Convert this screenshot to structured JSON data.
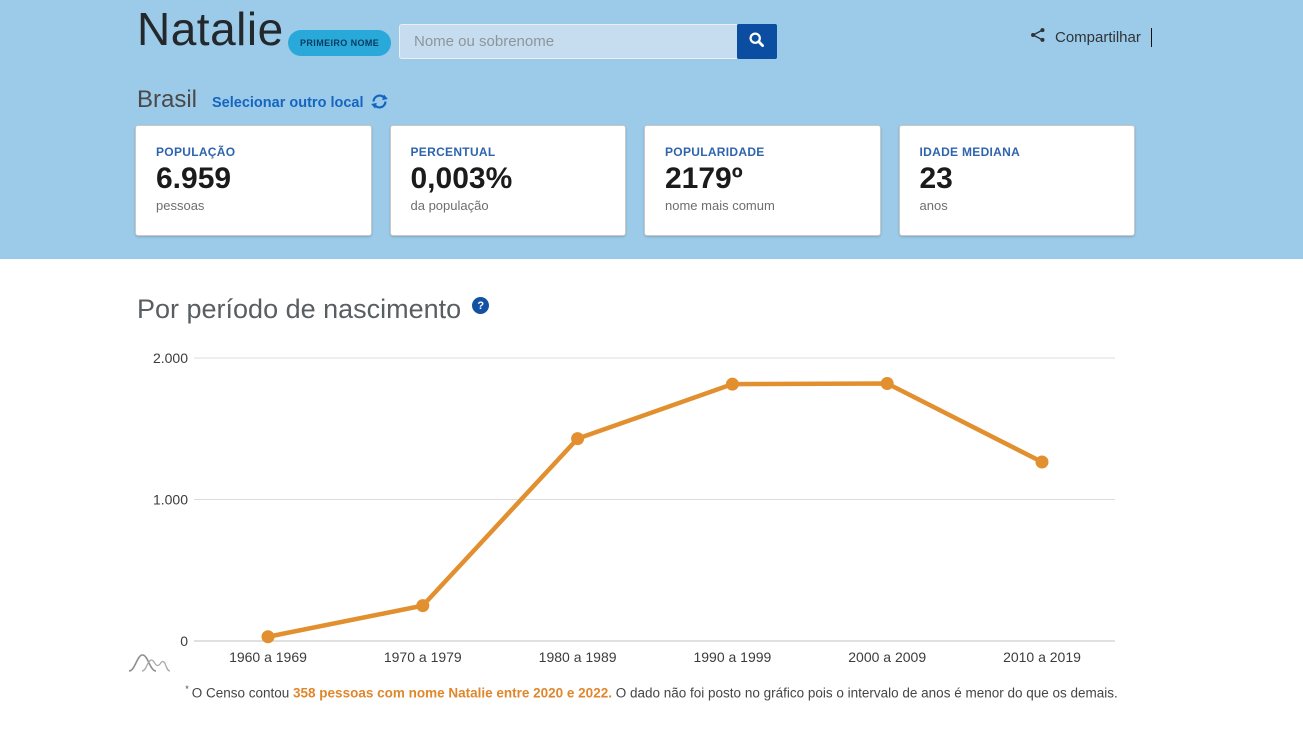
{
  "header": {
    "name": "Natalie",
    "name_type_badge": "PRIMEIRO NOME",
    "search_placeholder": "Nome ou sobrenome",
    "share_label": "Compartilhar"
  },
  "location": {
    "current": "Brasil",
    "change_label": "Selecionar outro local"
  },
  "stats": [
    {
      "label": "POPULAÇÃO",
      "value": "6.959",
      "sub": "pessoas"
    },
    {
      "label": "PERCENTUAL",
      "value": "0,003%",
      "sub": "da população"
    },
    {
      "label": "POPULARIDADE",
      "value": "2179º",
      "sub": "nome mais comum"
    },
    {
      "label": "IDADE MEDIANA",
      "value": "23",
      "sub": "anos"
    }
  ],
  "chart_section": {
    "title": "Por período de nascimento"
  },
  "chart_data": {
    "type": "line",
    "title": "Por período de nascimento",
    "categories": [
      "1960 a 1969",
      "1970 a 1979",
      "1980 a 1989",
      "1990 a 1999",
      "2000 a 2009",
      "2010 a 2019"
    ],
    "values": [
      30,
      250,
      1430,
      1815,
      1820,
      1265
    ],
    "yticks": [
      0,
      1000,
      2000
    ],
    "ytick_labels": [
      "0",
      "1.000",
      "2.000"
    ],
    "ylim": [
      0,
      2000
    ],
    "xlabel": "",
    "ylabel": "",
    "grid": true,
    "legend": "none",
    "line_color": "#e2902f",
    "point_color": "#e2902f"
  },
  "footnote": {
    "asterisk": "*",
    "prefix": "O Censo contou ",
    "highlight": "358 pessoas com nome Natalie entre 2020 e 2022.",
    "suffix": " O dado não foi posto no gráfico pois o intervalo de anos é menor do que os demais."
  },
  "icons": {
    "search": "magnifier-icon",
    "share": "share-icon",
    "refresh": "refresh-icon",
    "help": "question-mark-icon",
    "help_glyph": "?",
    "chart_watermark": "distribution-curve-icon"
  },
  "colors": {
    "hero_background": "#9ccbe9",
    "badge_background": "#29a9d9",
    "search_button": "#0a4da1",
    "link_blue": "#1565c0",
    "stat_label_blue": "#2e64ae",
    "chart_line_orange": "#e2902f",
    "footnote_highlight_orange": "#e0872c"
  }
}
